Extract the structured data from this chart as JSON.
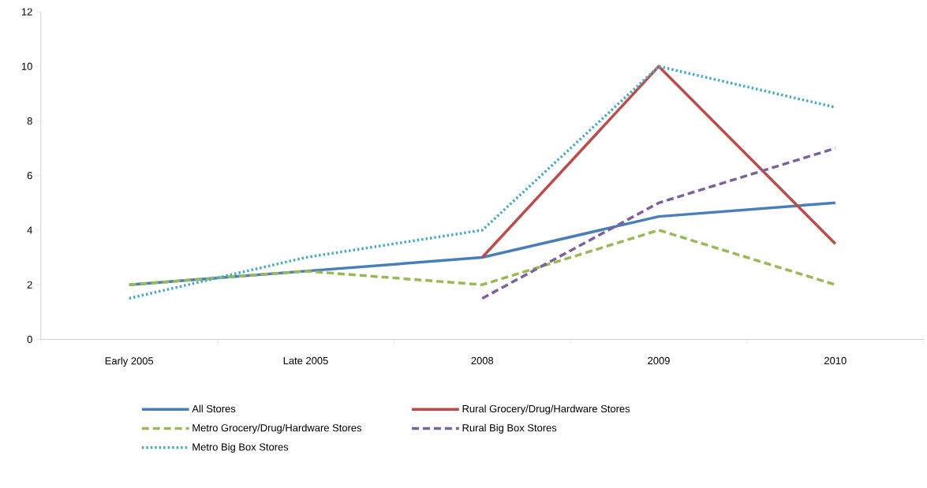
{
  "chart_data": {
    "type": "line",
    "categories": [
      "Early 2005",
      "Late 2005",
      "2008",
      "2009",
      "2010"
    ],
    "series": [
      {
        "name": "All Stores",
        "color": "#4a7ebb",
        "line_style": "solid",
        "values": [
          2,
          2.5,
          3,
          4.5,
          5
        ]
      },
      {
        "name": "Rural Grocery/Drug/Hardware Stores",
        "color": "#be4b48",
        "line_style": "solid",
        "values": [
          null,
          null,
          3,
          10,
          3.5
        ]
      },
      {
        "name": "Metro Grocery/Drug/Hardware Stores",
        "color": "#98b954",
        "line_style": "dashed",
        "values": [
          2,
          2.5,
          2,
          4,
          2
        ]
      },
      {
        "name": "Rural Big Box Stores",
        "color": "#7d60a0",
        "line_style": "dashed",
        "values": [
          null,
          null,
          1.5,
          5,
          7
        ]
      },
      {
        "name": "Metro Big Box Stores",
        "color": "#46aac5",
        "line_style": "dotted",
        "values": [
          1.5,
          3,
          4,
          10,
          8.5
        ]
      }
    ],
    "ylim": [
      0,
      12
    ],
    "yticks": [
      0,
      2,
      4,
      6,
      8,
      10,
      12
    ],
    "grid": false,
    "legend": "bottom",
    "marker": "none"
  }
}
